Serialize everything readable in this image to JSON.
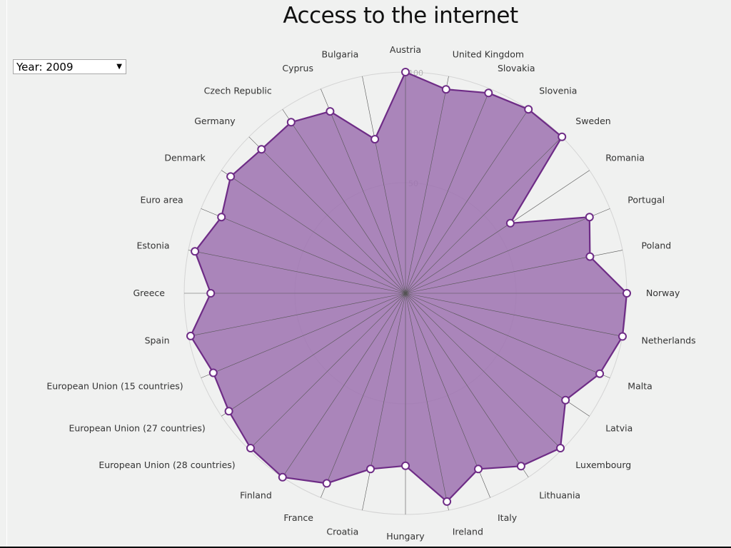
{
  "title": "Access to the internet",
  "controls": {
    "year_select": {
      "value": "Year: 2009"
    }
  },
  "colors": {
    "background": "#f0f1f0",
    "area_fill": "#9e72b0",
    "area_stroke": "#6e2c86",
    "point_fill": "#ffffff",
    "spoke": "#555555",
    "grid": "#d4d4d4"
  },
  "chart_data": {
    "type": "radar",
    "title": "Access to the internet",
    "rmax": 100,
    "grid_ticks": [
      50,
      100
    ],
    "grid_labels": [
      "50",
      "100"
    ],
    "categories": [
      "Austria",
      "United Kingdom",
      "Slovakia",
      "Slovenia",
      "Sweden",
      "Romania",
      "Portugal",
      "Poland",
      "Norway",
      "Netherlands",
      "Malta",
      "Latvia",
      "Luxembourg",
      "Lithuania",
      "Italy",
      "Ireland",
      "Hungary",
      "Croatia",
      "France",
      "Finland",
      "European Union (28 countries)",
      "European Union (27 countries)",
      "European Union (15 countries)",
      "Spain",
      "Greece",
      "Estonia",
      "Euro area",
      "Denmark",
      "Germany",
      "Czech Republic",
      "Cyprus",
      "Bulgaria"
    ],
    "series": [
      {
        "values": [
          100,
          94,
          98,
          100,
          100,
          57,
          90,
          85,
          100,
          100,
          95,
          87,
          99,
          94,
          86,
          96,
          78,
          81,
          93,
          100,
          99,
          96,
          94,
          99,
          88,
          97,
          90,
          95,
          92,
          93,
          89,
          71
        ]
      }
    ]
  }
}
